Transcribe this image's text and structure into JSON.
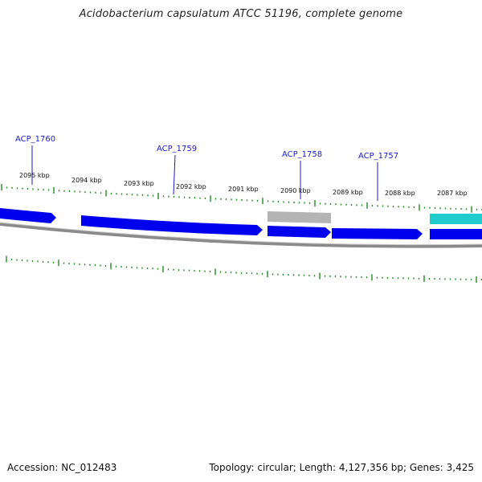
{
  "title": "Acidobacterium capsulatum ATCC 51196, complete genome",
  "footer": {
    "accession": "Accession: NC_012483",
    "summary": "Topology: circular; Length: 4,127,356 bp; Genes: 3,425"
  },
  "colors": {
    "gene_forward": "#0000ee",
    "gene_pseudo": "#b4b4b4",
    "rna": "#22cccc",
    "backbone": "#808080",
    "tick": "#1e8c1e",
    "label": "#1a1acc"
  },
  "scale_labels": [
    "2095 kbp",
    "2094 kbp",
    "2093 kbp",
    "2092 kbp",
    "2091 kbp",
    "2090 kbp",
    "2089 kbp",
    "2088 kbp",
    "2087 kbp"
  ],
  "gene_labels": [
    "ACP_1760",
    "ACP_1759",
    "ACP_1758",
    "ACP_1757"
  ],
  "features": [
    {
      "kind": "gene",
      "strand": "+",
      "label": ""
    },
    {
      "kind": "gene",
      "strand": "+",
      "label": "ACP_1759"
    },
    {
      "kind": "pseudogene",
      "strand": "+",
      "label": "ACP_1758"
    },
    {
      "kind": "gene",
      "strand": "+",
      "label": "ACP_1758"
    },
    {
      "kind": "gene",
      "strand": "+",
      "label": "ACP_1757"
    },
    {
      "kind": "rna",
      "strand": "+",
      "label": ""
    },
    {
      "kind": "gene",
      "strand": "+",
      "label": ""
    }
  ]
}
